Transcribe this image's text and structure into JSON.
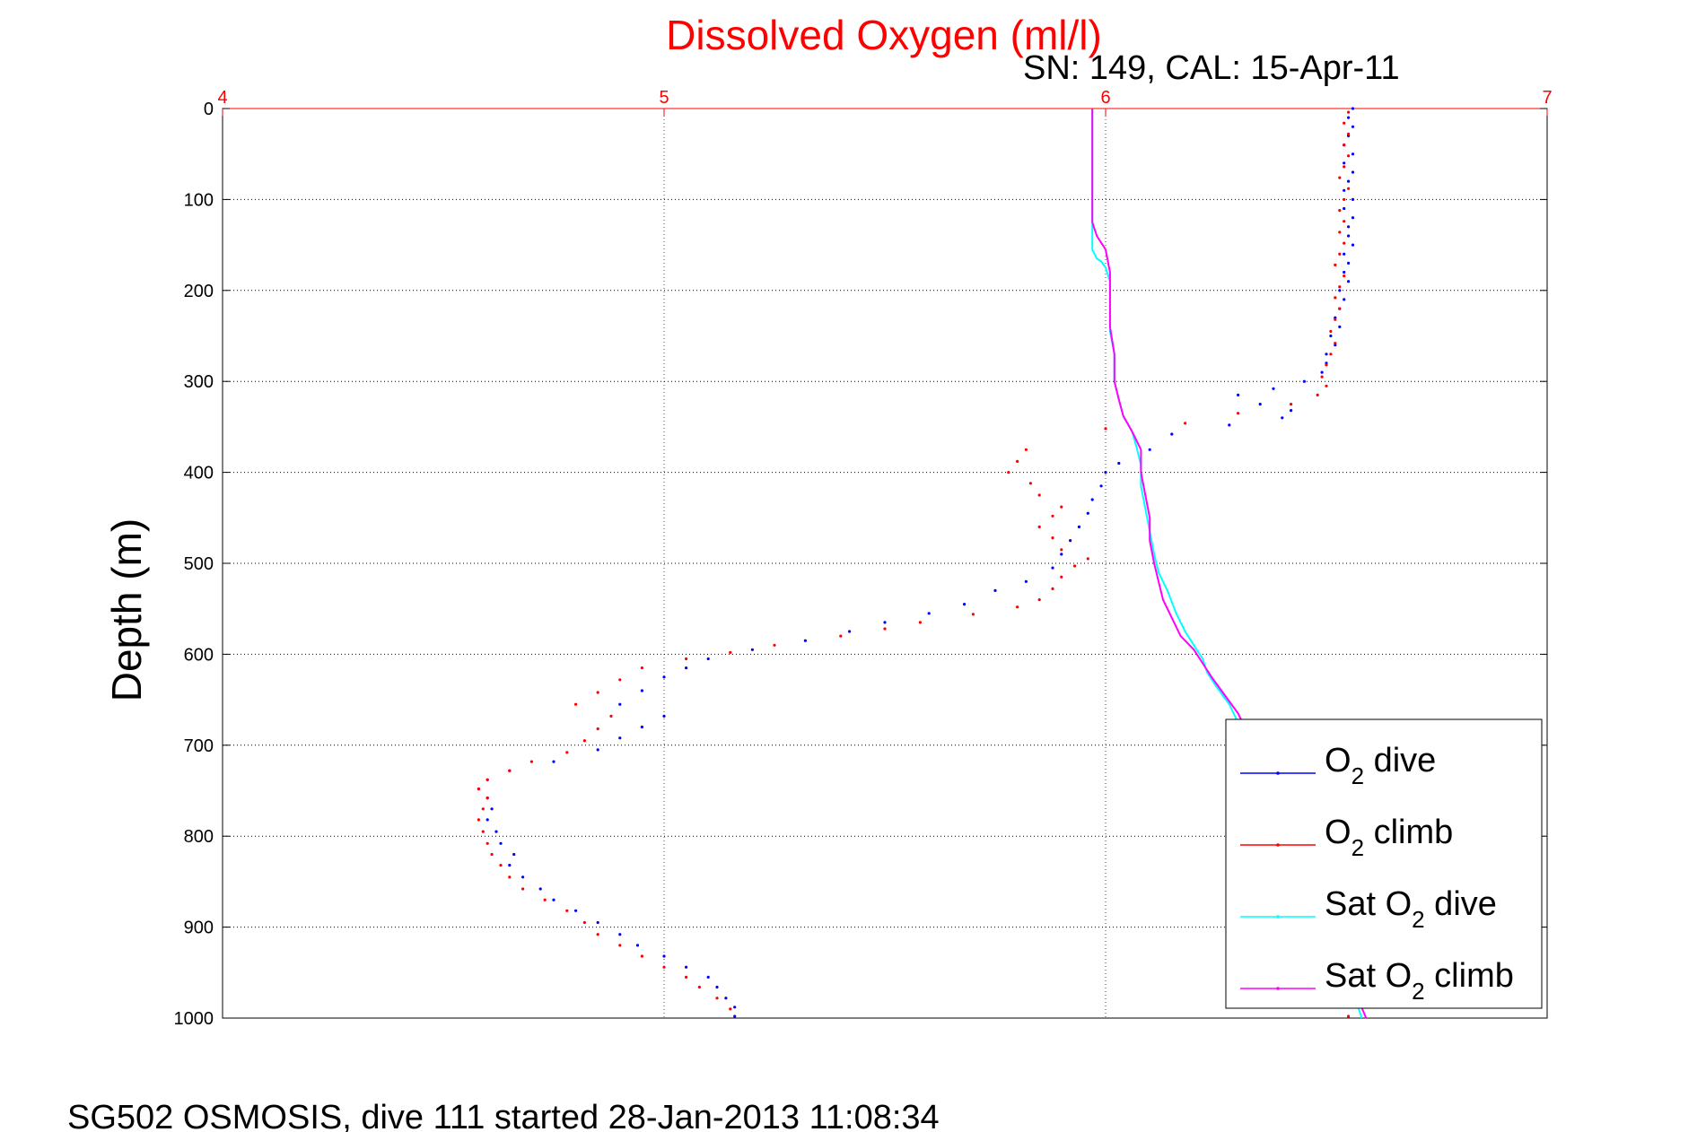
{
  "chart_data": {
    "type": "scatter",
    "title": "Dissolved Oxygen (ml/l)",
    "subtitle": "SN: 149, CAL: 15-Apr-11",
    "footer": "SG502 OSMOSIS, dive 111 started 28-Jan-2013 11:08:34",
    "ylabel": "Depth (m)",
    "xlim": [
      4,
      7
    ],
    "ylim": [
      0,
      1000
    ],
    "y_reversed": true,
    "x_axis_position": "top",
    "x_ticks": [
      "4",
      "5",
      "6",
      "7"
    ],
    "y_ticks": [
      "0",
      "100",
      "200",
      "300",
      "400",
      "500",
      "600",
      "700",
      "800",
      "900",
      "1000"
    ],
    "grid": true,
    "legend_position": "bottom-right",
    "colors": {
      "title": "#ff0000",
      "x_axis": "#ff0000",
      "grid": "#000000"
    },
    "legend": [
      {
        "base": "O",
        "sub": "2",
        "suffix": " dive",
        "color": "#0000ff"
      },
      {
        "base": "O",
        "sub": "2",
        "suffix": " climb",
        "color": "#ff0000"
      },
      {
        "base": "Sat O",
        "sub": "2",
        "suffix": " dive",
        "color": "#00ffff"
      },
      {
        "base": "Sat O",
        "sub": "2",
        "suffix": " climb",
        "color": "#ff00ff"
      }
    ],
    "series": [
      {
        "name": "O2 dive",
        "style": "dots",
        "color": "#0000ff",
        "points": [
          [
            6.56,
            0
          ],
          [
            6.55,
            10
          ],
          [
            6.56,
            20
          ],
          [
            6.55,
            30
          ],
          [
            6.54,
            40
          ],
          [
            6.56,
            50
          ],
          [
            6.54,
            60
          ],
          [
            6.56,
            70
          ],
          [
            6.55,
            80
          ],
          [
            6.54,
            90
          ],
          [
            6.56,
            100
          ],
          [
            6.54,
            110
          ],
          [
            6.56,
            120
          ],
          [
            6.55,
            130
          ],
          [
            6.55,
            140
          ],
          [
            6.56,
            150
          ],
          [
            6.54,
            160
          ],
          [
            6.55,
            170
          ],
          [
            6.54,
            180
          ],
          [
            6.55,
            190
          ],
          [
            6.53,
            200
          ],
          [
            6.54,
            210
          ],
          [
            6.53,
            220
          ],
          [
            6.52,
            230
          ],
          [
            6.53,
            240
          ],
          [
            6.51,
            250
          ],
          [
            6.52,
            260
          ],
          [
            6.5,
            270
          ],
          [
            6.5,
            280
          ],
          [
            6.49,
            290
          ],
          [
            6.45,
            300
          ],
          [
            6.38,
            308
          ],
          [
            6.3,
            315
          ],
          [
            6.35,
            325
          ],
          [
            6.42,
            332
          ],
          [
            6.4,
            340
          ],
          [
            6.28,
            348
          ],
          [
            6.15,
            358
          ],
          [
            6.1,
            375
          ],
          [
            6.03,
            390
          ],
          [
            6.0,
            400
          ],
          [
            5.99,
            415
          ],
          [
            5.97,
            430
          ],
          [
            5.96,
            445
          ],
          [
            5.94,
            460
          ],
          [
            5.92,
            475
          ],
          [
            5.9,
            490
          ],
          [
            5.88,
            505
          ],
          [
            5.82,
            520
          ],
          [
            5.75,
            530
          ],
          [
            5.68,
            545
          ],
          [
            5.6,
            555
          ],
          [
            5.5,
            565
          ],
          [
            5.42,
            575
          ],
          [
            5.32,
            585
          ],
          [
            5.2,
            595
          ],
          [
            5.1,
            605
          ],
          [
            5.05,
            615
          ],
          [
            5.0,
            625
          ],
          [
            4.95,
            640
          ],
          [
            4.9,
            655
          ],
          [
            5.0,
            668
          ],
          [
            4.95,
            680
          ],
          [
            4.9,
            692
          ],
          [
            4.85,
            705
          ],
          [
            4.75,
            718
          ],
          [
            4.65,
            728
          ],
          [
            4.6,
            738
          ],
          [
            4.58,
            748
          ],
          [
            4.6,
            758
          ],
          [
            4.61,
            770
          ],
          [
            4.6,
            782
          ],
          [
            4.62,
            795
          ],
          [
            4.63,
            808
          ],
          [
            4.66,
            820
          ],
          [
            4.65,
            832
          ],
          [
            4.68,
            845
          ],
          [
            4.72,
            858
          ],
          [
            4.75,
            870
          ],
          [
            4.8,
            882
          ],
          [
            4.85,
            895
          ],
          [
            4.9,
            908
          ],
          [
            4.94,
            920
          ],
          [
            5.0,
            932
          ],
          [
            5.05,
            944
          ],
          [
            5.1,
            955
          ],
          [
            5.12,
            966
          ],
          [
            5.14,
            978
          ],
          [
            5.16,
            988
          ],
          [
            5.16,
            998
          ]
        ]
      },
      {
        "name": "O2 climb",
        "style": "dots",
        "color": "#ff0000",
        "points": [
          [
            6.55,
            998
          ],
          [
            5.15,
            990
          ],
          [
            5.12,
            978
          ],
          [
            5.08,
            966
          ],
          [
            5.05,
            955
          ],
          [
            5.0,
            944
          ],
          [
            4.95,
            932
          ],
          [
            4.9,
            920
          ],
          [
            4.85,
            908
          ],
          [
            4.82,
            895
          ],
          [
            4.78,
            882
          ],
          [
            4.73,
            870
          ],
          [
            4.68,
            858
          ],
          [
            4.65,
            845
          ],
          [
            4.63,
            832
          ],
          [
            4.61,
            820
          ],
          [
            4.6,
            808
          ],
          [
            4.59,
            795
          ],
          [
            4.58,
            782
          ],
          [
            4.59,
            770
          ],
          [
            4.6,
            758
          ],
          [
            4.58,
            748
          ],
          [
            4.6,
            738
          ],
          [
            4.65,
            728
          ],
          [
            4.7,
            718
          ],
          [
            4.78,
            708
          ],
          [
            4.82,
            695
          ],
          [
            4.85,
            682
          ],
          [
            4.88,
            668
          ],
          [
            4.8,
            655
          ],
          [
            4.85,
            642
          ],
          [
            4.9,
            628
          ],
          [
            4.95,
            615
          ],
          [
            5.05,
            605
          ],
          [
            5.15,
            598
          ],
          [
            5.25,
            590
          ],
          [
            5.4,
            580
          ],
          [
            5.5,
            572
          ],
          [
            5.58,
            565
          ],
          [
            5.7,
            556
          ],
          [
            5.8,
            548
          ],
          [
            5.85,
            540
          ],
          [
            5.88,
            528
          ],
          [
            5.9,
            515
          ],
          [
            5.93,
            503
          ],
          [
            5.96,
            495
          ],
          [
            5.9,
            485
          ],
          [
            5.88,
            472
          ],
          [
            5.85,
            460
          ],
          [
            5.88,
            448
          ],
          [
            5.9,
            438
          ],
          [
            5.85,
            425
          ],
          [
            5.83,
            412
          ],
          [
            5.78,
            400
          ],
          [
            5.8,
            388
          ],
          [
            5.82,
            375
          ],
          [
            6.0,
            352
          ],
          [
            6.18,
            346
          ],
          [
            6.3,
            335
          ],
          [
            6.42,
            325
          ],
          [
            6.48,
            315
          ],
          [
            6.5,
            305
          ],
          [
            6.49,
            295
          ],
          [
            6.5,
            282
          ],
          [
            6.51,
            270
          ],
          [
            6.52,
            258
          ],
          [
            6.51,
            245
          ],
          [
            6.52,
            232
          ],
          [
            6.53,
            220
          ],
          [
            6.52,
            208
          ],
          [
            6.53,
            196
          ],
          [
            6.54,
            184
          ],
          [
            6.52,
            172
          ],
          [
            6.53,
            160
          ],
          [
            6.54,
            148
          ],
          [
            6.53,
            136
          ],
          [
            6.54,
            124
          ],
          [
            6.53,
            112
          ],
          [
            6.54,
            100
          ],
          [
            6.55,
            88
          ],
          [
            6.53,
            76
          ],
          [
            6.54,
            64
          ],
          [
            6.55,
            52
          ],
          [
            6.54,
            40
          ],
          [
            6.55,
            28
          ],
          [
            6.54,
            16
          ],
          [
            6.55,
            4
          ]
        ]
      },
      {
        "name": "Sat O2 dive",
        "style": "line",
        "color": "#00ffff",
        "points": [
          [
            5.97,
            0
          ],
          [
            5.97,
            50
          ],
          [
            5.97,
            100
          ],
          [
            5.97,
            130
          ],
          [
            5.97,
            155
          ],
          [
            5.98,
            165
          ],
          [
            5.99,
            168
          ],
          [
            6.0,
            175
          ],
          [
            6.01,
            190
          ],
          [
            6.01,
            215
          ],
          [
            6.01,
            245
          ],
          [
            6.02,
            270
          ],
          [
            6.02,
            300
          ],
          [
            6.03,
            320
          ],
          [
            6.04,
            338
          ],
          [
            6.06,
            355
          ],
          [
            6.07,
            372
          ],
          [
            6.08,
            392
          ],
          [
            6.08,
            415
          ],
          [
            6.09,
            440
          ],
          [
            6.1,
            465
          ],
          [
            6.11,
            490
          ],
          [
            6.12,
            510
          ],
          [
            6.14,
            530
          ],
          [
            6.16,
            555
          ],
          [
            6.18,
            575
          ],
          [
            6.2,
            590
          ],
          [
            6.22,
            605
          ],
          [
            6.23,
            620
          ],
          [
            6.25,
            635
          ],
          [
            6.28,
            655
          ],
          [
            6.3,
            675
          ],
          [
            6.33,
            700
          ],
          [
            6.37,
            730
          ],
          [
            6.4,
            760
          ],
          [
            6.43,
            790
          ],
          [
            6.45,
            820
          ],
          [
            6.48,
            850
          ],
          [
            6.5,
            880
          ],
          [
            6.52,
            910
          ],
          [
            6.54,
            940
          ],
          [
            6.56,
            970
          ],
          [
            6.58,
            1000
          ]
        ]
      },
      {
        "name": "Sat O2 climb",
        "style": "line",
        "color": "#ff00ff",
        "points": [
          [
            5.97,
            0
          ],
          [
            5.97,
            50
          ],
          [
            5.97,
            100
          ],
          [
            5.97,
            125
          ],
          [
            5.98,
            140
          ],
          [
            6.0,
            155
          ],
          [
            6.01,
            180
          ],
          [
            6.01,
            210
          ],
          [
            6.01,
            240
          ],
          [
            6.02,
            270
          ],
          [
            6.02,
            300
          ],
          [
            6.03,
            320
          ],
          [
            6.04,
            338
          ],
          [
            6.06,
            355
          ],
          [
            6.08,
            375
          ],
          [
            6.08,
            400
          ],
          [
            6.09,
            425
          ],
          [
            6.1,
            450
          ],
          [
            6.1,
            475
          ],
          [
            6.11,
            500
          ],
          [
            6.12,
            520
          ],
          [
            6.13,
            540
          ],
          [
            6.15,
            560
          ],
          [
            6.17,
            580
          ],
          [
            6.2,
            595
          ],
          [
            6.22,
            610
          ],
          [
            6.24,
            625
          ],
          [
            6.27,
            645
          ],
          [
            6.3,
            665
          ],
          [
            6.33,
            695
          ],
          [
            6.37,
            725
          ],
          [
            6.4,
            755
          ],
          [
            6.43,
            785
          ],
          [
            6.45,
            815
          ],
          [
            6.48,
            845
          ],
          [
            6.5,
            875
          ],
          [
            6.52,
            905
          ],
          [
            6.54,
            935
          ],
          [
            6.56,
            965
          ],
          [
            6.59,
            1000
          ]
        ]
      }
    ]
  }
}
